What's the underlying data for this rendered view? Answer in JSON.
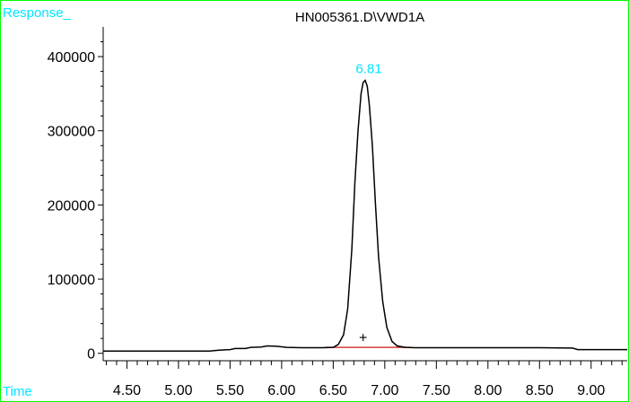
{
  "chart_data": {
    "type": "line",
    "title": "HN005361.D\\VWD1A",
    "ylabel": "Response_",
    "xlabel": "Time",
    "xlim": [
      4.27,
      9.35
    ],
    "ylim": [
      -10000,
      440000
    ],
    "x_ticks": [
      "4.50",
      "5.00",
      "5.50",
      "6.00",
      "6.50",
      "7.00",
      "7.50",
      "8.00",
      "8.50",
      "9.00"
    ],
    "y_ticks": [
      "0",
      "100000",
      "200000",
      "300000",
      "400000"
    ],
    "peak_label": "6.81",
    "peak": {
      "rt": 6.81,
      "height": 368000
    },
    "integration_baseline": {
      "x_start": 6.42,
      "x_end": 7.25,
      "y": 8000
    },
    "marker": {
      "symbol": "+",
      "x": 6.79,
      "y": 22000
    },
    "series": [
      {
        "x": [
          4.27,
          5.3,
          5.38,
          5.5,
          5.55,
          5.65,
          5.7,
          5.8,
          5.86,
          5.95,
          6.05,
          6.2,
          6.4,
          6.5,
          6.55,
          6.6,
          6.64,
          6.68,
          6.71,
          6.74,
          6.77,
          6.79,
          6.81,
          6.83,
          6.85,
          6.88,
          6.91,
          6.94,
          6.98,
          7.02,
          7.07,
          7.12,
          7.2,
          7.3,
          7.5,
          8.0,
          8.5,
          8.82,
          8.87,
          9.35
        ],
        "y": [
          3000,
          3000,
          4000,
          5000,
          6500,
          6500,
          8000,
          8500,
          10000,
          9500,
          8000,
          7500,
          7500,
          8000,
          12000,
          25000,
          60000,
          140000,
          230000,
          300000,
          350000,
          365000,
          368000,
          360000,
          335000,
          280000,
          200000,
          130000,
          70000,
          35000,
          16000,
          10000,
          8000,
          7500,
          7500,
          7500,
          7500,
          7000,
          5000,
          5000
        ]
      }
    ],
    "colors": {
      "frame": "#00ff00",
      "label_accent": "#00ffff",
      "trace": "#000000",
      "baseline": "#d23c3c"
    }
  }
}
